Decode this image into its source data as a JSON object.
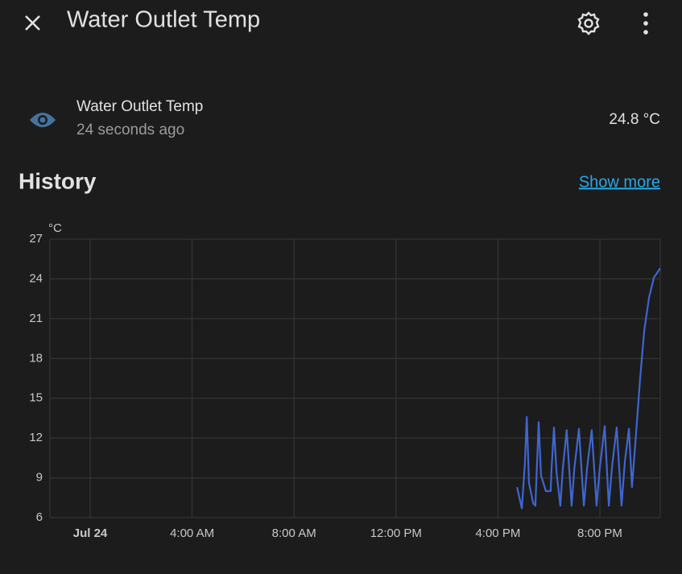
{
  "header": {
    "title": "Water Outlet Temp"
  },
  "entity": {
    "name": "Water Outlet Temp",
    "last_changed": "24 seconds ago",
    "state": "24.8 °C"
  },
  "history": {
    "title": "History",
    "link": "Show more"
  },
  "chart_data": {
    "type": "line",
    "y_unit": "°C",
    "color": "#3f66d0",
    "grid": true,
    "x": [
      16.75,
      16.94,
      17.06,
      17.13,
      17.22,
      17.38,
      17.47,
      17.6,
      17.69,
      17.88,
      18.07,
      18.1,
      18.2,
      18.3,
      18.45,
      18.55,
      18.7,
      18.89,
      19.0,
      19.18,
      19.37,
      19.5,
      19.68,
      19.87,
      20.0,
      20.19,
      20.35,
      20.48,
      20.66,
      20.85,
      20.98,
      21.14,
      21.26,
      21.42,
      21.58,
      21.74,
      21.93,
      22.12,
      22.37
    ],
    "values": [
      8.3,
      6.7,
      10.1,
      13.6,
      8.6,
      7.1,
      6.9,
      13.2,
      9.2,
      8.0,
      8.0,
      9.6,
      12.8,
      9.4,
      6.9,
      9.8,
      12.6,
      6.9,
      9.7,
      12.7,
      6.9,
      9.8,
      12.6,
      6.9,
      9.8,
      12.9,
      6.9,
      9.9,
      12.8,
      6.9,
      10.2,
      12.7,
      8.3,
      12.3,
      16.5,
      20.1,
      22.6,
      24.1,
      24.8
    ],
    "xlim": [
      -1.58,
      22.37
    ],
    "xticks": [
      {
        "value": 0,
        "label": "Jul 24"
      },
      {
        "value": 4,
        "label": "4:00 AM"
      },
      {
        "value": 8,
        "label": "8:00 AM"
      },
      {
        "value": 12,
        "label": "12:00 PM"
      },
      {
        "value": 16,
        "label": "4:00 PM"
      },
      {
        "value": 20,
        "label": "8:00 PM"
      }
    ],
    "ylim": [
      6,
      27
    ],
    "yticks": [
      6,
      9,
      12,
      15,
      18,
      21,
      24,
      27
    ]
  }
}
